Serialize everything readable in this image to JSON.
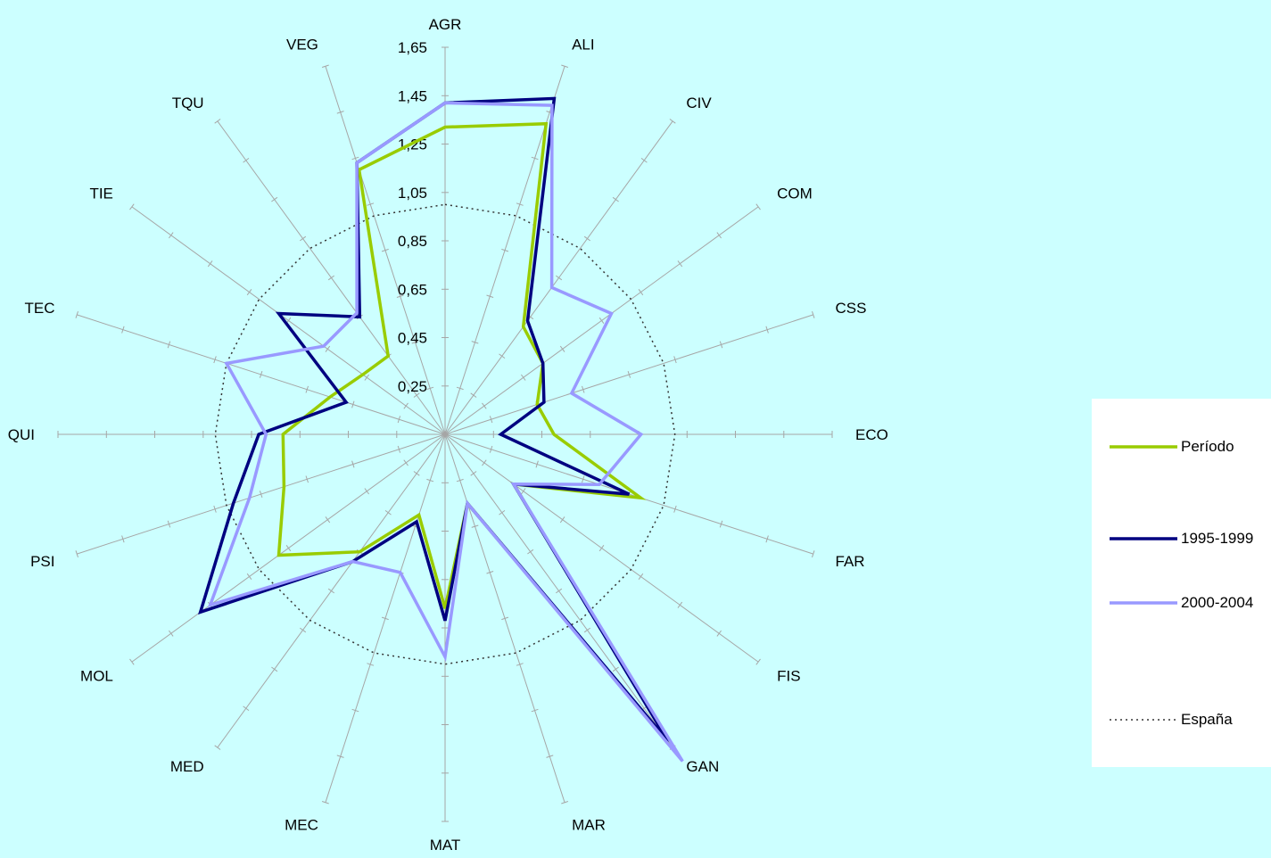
{
  "chart_data": {
    "type": "radar",
    "title": "",
    "categories": [
      "AGR",
      "ALI",
      "CIV",
      "COM",
      "CSS",
      "ECO",
      "FAR",
      "FIS",
      "GAN",
      "MAR",
      "MAT",
      "MEC",
      "MED",
      "MOL",
      "PSI",
      "QUI",
      "TEC",
      "TIE",
      "TQU",
      "VEG"
    ],
    "radial_ticks": [
      "1,65",
      "1,45",
      "1,25",
      "1,05",
      "0,85",
      "0,65",
      "0,45",
      "0,25"
    ],
    "range": [
      0.05,
      1.65
    ],
    "series": [
      {
        "name": "Período",
        "color": "#99CC00",
        "style": "solid",
        "values": [
          1.32,
          1.4,
          0.6,
          0.55,
          0.45,
          0.5,
          0.9,
          0.4,
          1.65,
          0.35,
          0.77,
          0.4,
          0.65,
          0.9,
          0.75,
          0.72,
          0.55,
          0.47,
          0.45,
          1.2
        ]
      },
      {
        "name": "1995-1999",
        "color": "#000080",
        "style": "solid",
        "values": [
          1.42,
          1.51,
          0.63,
          0.55,
          0.48,
          0.28,
          0.85,
          0.4,
          1.62,
          0.35,
          0.82,
          0.43,
          0.7,
          1.3,
          0.97,
          0.82,
          0.48,
          0.9,
          0.65,
          1.23
        ]
      },
      {
        "name": "2000-2004",
        "color": "#9999FF",
        "style": "solid",
        "values": [
          1.42,
          1.48,
          0.8,
          0.9,
          0.6,
          0.86,
          0.72,
          0.4,
          1.72,
          0.35,
          0.97,
          0.65,
          0.7,
          1.25,
          0.9,
          0.79,
          1.0,
          0.67,
          0.67,
          1.23
        ]
      },
      {
        "name": "España",
        "color": "#333333",
        "style": "dotted",
        "values": [
          1.0,
          1.0,
          1.0,
          1.0,
          1.0,
          1.0,
          1.0,
          1.0,
          1.0,
          1.0,
          1.0,
          1.0,
          1.0,
          1.0,
          1.0,
          1.0,
          1.0,
          1.0,
          1.0,
          1.0
        ]
      }
    ],
    "legend_position": "right",
    "grid": false
  }
}
